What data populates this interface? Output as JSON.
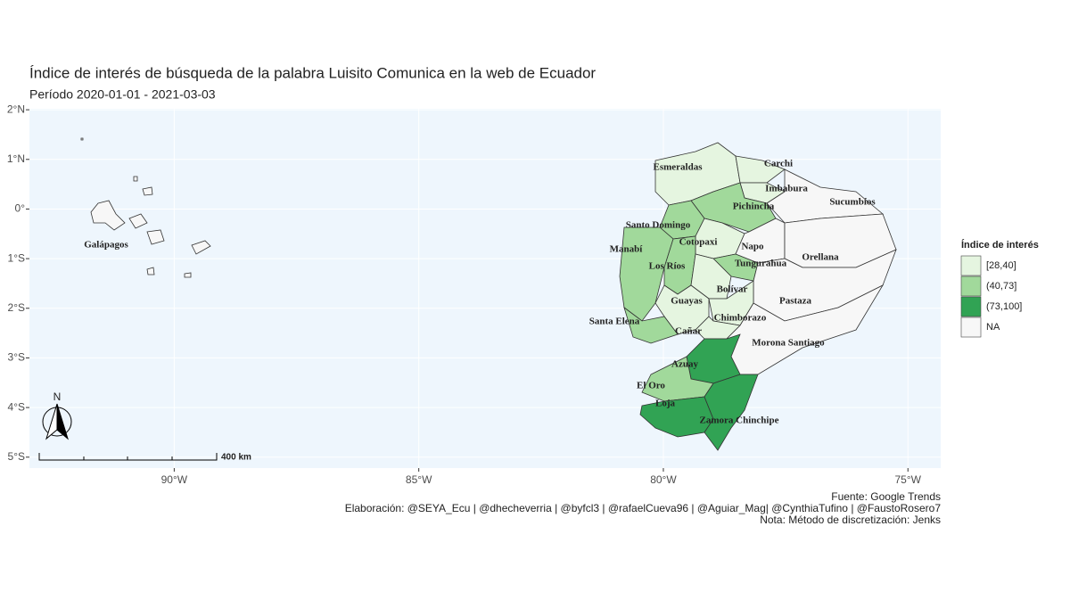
{
  "chart_data": {
    "type": "map",
    "title": "Índice de interés de búsqueda de la palabra Luisito Comunica en la web de Ecuador",
    "subtitle": "Período 2020-01-01 - 2021-03-03",
    "xlim": [
      -92.96,
      -74.33
    ],
    "ylim": [
      -5.22,
      2.02
    ],
    "xticks": [
      {
        "value": -90,
        "label": "90°W"
      },
      {
        "value": -85,
        "label": "85°W"
      },
      {
        "value": -80,
        "label": "80°W"
      },
      {
        "value": -75,
        "label": "75°W"
      }
    ],
    "yticks": [
      {
        "value": 2,
        "label": "2°N"
      },
      {
        "value": 1,
        "label": "1°N"
      },
      {
        "value": 0,
        "label": "0°"
      },
      {
        "value": -1,
        "label": "1°S"
      },
      {
        "value": -2,
        "label": "2°S"
      },
      {
        "value": -3,
        "label": "3°S"
      },
      {
        "value": -4,
        "label": "4°S"
      },
      {
        "value": -5,
        "label": "5°S"
      }
    ],
    "grid": true,
    "background": "#eef6fd",
    "legend": {
      "title": "Índice de interés",
      "items": [
        {
          "label": "[28,40]",
          "color": "#e5f5e0"
        },
        {
          "label": "(40,73]",
          "color": "#a1d99b"
        },
        {
          "label": "(73,100]",
          "color": "#31a354"
        },
        {
          "label": "NA",
          "color": "#f7f7f7"
        }
      ]
    },
    "regions": [
      {
        "name": "Esmeraldas",
        "category": "[28,40]"
      },
      {
        "name": "Carchi",
        "category": "[28,40]"
      },
      {
        "name": "Imbabura",
        "category": "[28,40]"
      },
      {
        "name": "Sucumbíos",
        "category": "NA"
      },
      {
        "name": "Pichincha",
        "category": "(40,73]"
      },
      {
        "name": "Santo Domingo",
        "category": "(40,73]"
      },
      {
        "name": "Manabí",
        "category": "(40,73]"
      },
      {
        "name": "Cotopaxi",
        "category": "[28,40]"
      },
      {
        "name": "Napo",
        "category": "NA"
      },
      {
        "name": "Orellana",
        "category": "NA"
      },
      {
        "name": "Los Ríos",
        "category": "(40,73]"
      },
      {
        "name": "Tungurahua",
        "category": "(40,73]"
      },
      {
        "name": "Bolívar",
        "category": "[28,40]"
      },
      {
        "name": "Pastaza",
        "category": "NA"
      },
      {
        "name": "Guayas",
        "category": "[28,40]"
      },
      {
        "name": "Santa Elena",
        "category": "(40,73]"
      },
      {
        "name": "Chimborazo",
        "category": "[28,40]"
      },
      {
        "name": "Cañar",
        "category": "[28,40]"
      },
      {
        "name": "Morona Santiago",
        "category": "NA"
      },
      {
        "name": "Azuay",
        "category": "(73,100]"
      },
      {
        "name": "El Oro",
        "category": "(40,73]"
      },
      {
        "name": "Loja",
        "category": "(73,100]"
      },
      {
        "name": "Zamora Chinchipe",
        "category": "(73,100]"
      },
      {
        "name": "Galápagos",
        "category": "NA"
      }
    ],
    "scale_bar": "400 km",
    "north": "N",
    "captions": [
      "Fuente: Google Trends",
      "Elaboración:  @SEYA_Ecu | @dhecheverria | @byfcl3 | @rafaelCueva96 | @Aguiar_Mag| @CynthiaTufino | @FaustoRosero7",
      "Nota: Método de discretización: Jenks"
    ]
  }
}
